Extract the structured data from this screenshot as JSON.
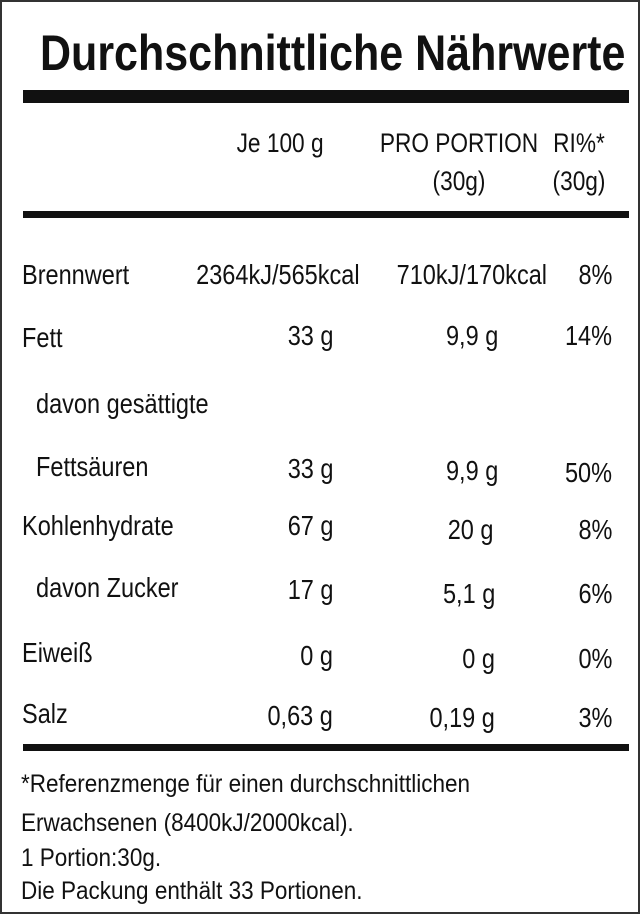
{
  "title": "Durchschnittliche Nährwerte",
  "headers": {
    "per100": "Je 100 g",
    "portion_line1": "PRO PORTION",
    "portion_line2": "(30g)",
    "ri_line1": "RI%*",
    "ri_line2": "(30g)"
  },
  "rows": [
    {
      "name": "Brennwert",
      "per100": "2364kJ/565kcal",
      "portion": "710kJ/170kcal",
      "ri": "8%"
    },
    {
      "name": "Fett",
      "per100": "33 g",
      "portion": "9,9 g",
      "ri": "14%"
    },
    {
      "name": "davon gesättigte"
    },
    {
      "name": "Fettsäuren",
      "per100": "33 g",
      "portion": "9,9 g",
      "ri": "50%"
    },
    {
      "name": "Kohlenhydrate",
      "per100": "67 g",
      "portion": "20 g",
      "ri": "8%"
    },
    {
      "name": "davon Zucker",
      "per100": "17 g",
      "portion": "5,1 g",
      "ri": "6%"
    },
    {
      "name": "Eiweiß",
      "per100": "0 g",
      "portion": "0 g",
      "ri": "0%"
    },
    {
      "name": "Salz",
      "per100": "0,63 g",
      "portion": "0,19 g",
      "ri": "3%"
    }
  ],
  "footnote": [
    "*Referenzmenge für einen durchschnittlichen",
    "Erwachsenen (8400kJ/2000kcal).",
    "1 Portion:30g.",
    "Die Packung enthält 33 Portionen."
  ]
}
